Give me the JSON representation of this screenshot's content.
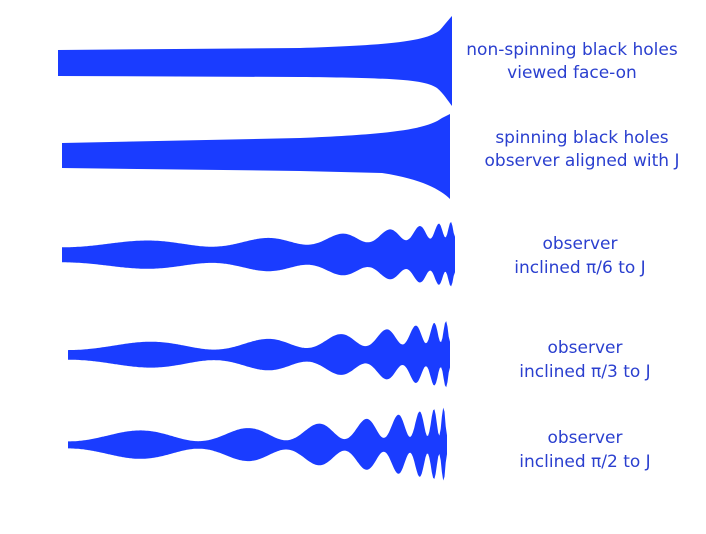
{
  "panels": [
    {
      "line1": "non-spinning black holes",
      "line2": "viewed face-on"
    },
    {
      "line1": "spinning black holes",
      "line2": "observer aligned with J"
    },
    {
      "line1": "observer",
      "line2": "inclined π/6 to J"
    },
    {
      "line1": "observer",
      "line2": "inclined π/3 to J"
    },
    {
      "line1": "observer",
      "line2": "inclined π/2 to J"
    }
  ]
}
